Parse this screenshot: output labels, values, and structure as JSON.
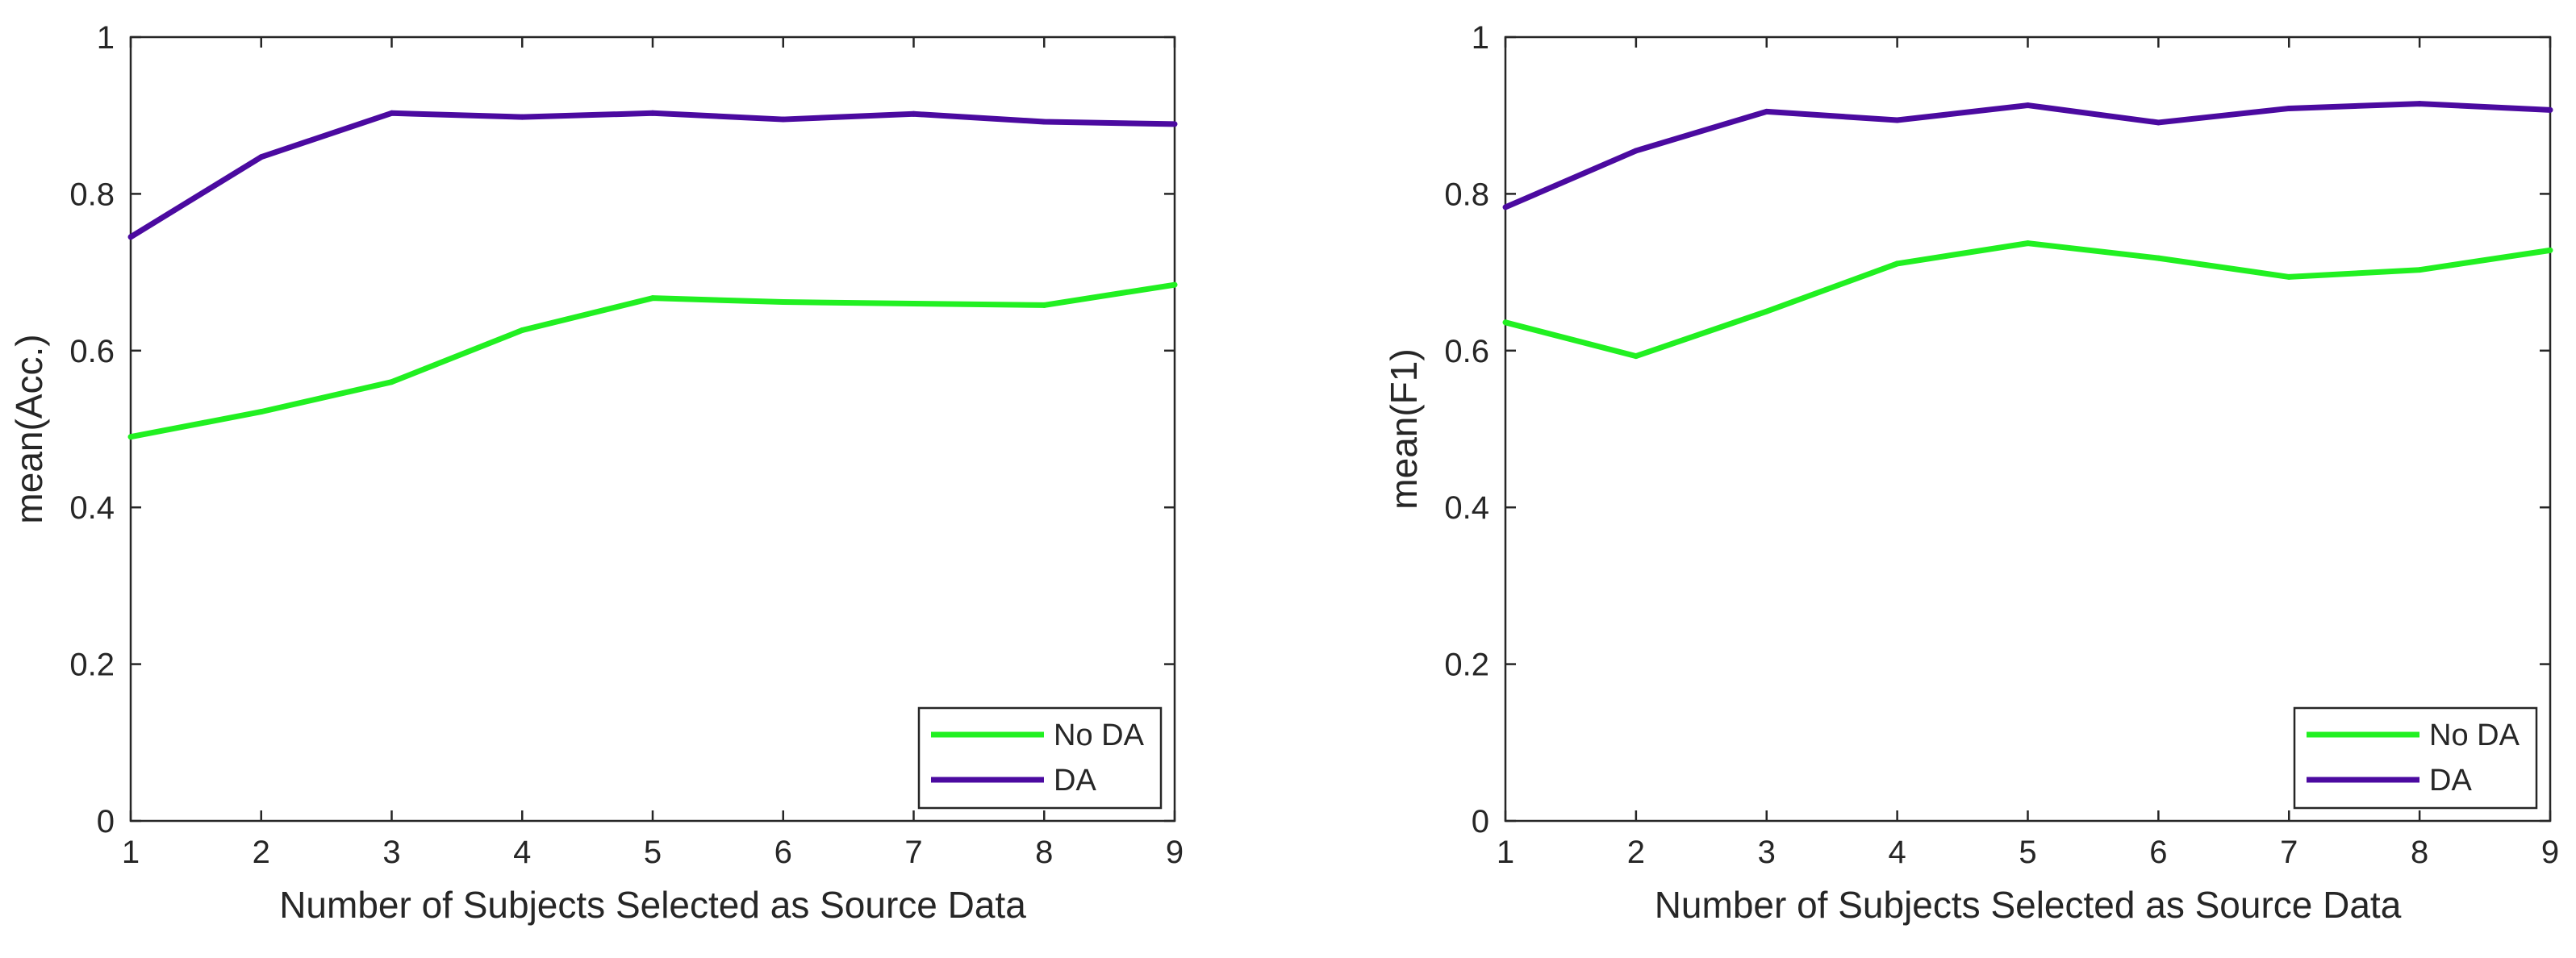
{
  "colors": {
    "no_da": "#21f021",
    "da": "#4b0aa0",
    "axis": "#262626"
  },
  "chart_data": [
    {
      "type": "line",
      "xlabel": "Number of Subjects Selected as Source Data",
      "ylabel": "mean(Acc.)",
      "xlim": [
        1,
        9
      ],
      "ylim": [
        0,
        1
      ],
      "x": [
        1,
        2,
        3,
        4,
        5,
        6,
        7,
        8,
        9
      ],
      "xticks": [
        "1",
        "2",
        "3",
        "4",
        "5",
        "6",
        "7",
        "8",
        "9"
      ],
      "yticks": [
        "0",
        "0.2",
        "0.4",
        "0.6",
        "0.8",
        "1"
      ],
      "legend_position": "bottom-right",
      "series": [
        {
          "name": "No DA",
          "values": [
            0.49,
            0.522,
            0.56,
            0.626,
            0.667,
            0.662,
            0.66,
            0.658,
            0.684
          ]
        },
        {
          "name": "DA",
          "values": [
            0.745,
            0.847,
            0.903,
            0.898,
            0.903,
            0.895,
            0.902,
            0.892,
            0.889
          ]
        }
      ]
    },
    {
      "type": "line",
      "xlabel": "Number of Subjects Selected as Source Data",
      "ylabel": "mean(F1)",
      "xlim": [
        1,
        9
      ],
      "ylim": [
        0,
        1
      ],
      "x": [
        1,
        2,
        3,
        4,
        5,
        6,
        7,
        8,
        9
      ],
      "xticks": [
        "1",
        "2",
        "3",
        "4",
        "5",
        "6",
        "7",
        "8",
        "9"
      ],
      "yticks": [
        "0",
        "0.2",
        "0.4",
        "0.6",
        "0.8",
        "1"
      ],
      "legend_position": "bottom-right",
      "series": [
        {
          "name": "No DA",
          "values": [
            0.636,
            0.593,
            0.65,
            0.711,
            0.737,
            0.718,
            0.694,
            0.703,
            0.728
          ]
        },
        {
          "name": "DA",
          "values": [
            0.783,
            0.855,
            0.905,
            0.894,
            0.913,
            0.891,
            0.909,
            0.915,
            0.907
          ]
        }
      ]
    }
  ]
}
